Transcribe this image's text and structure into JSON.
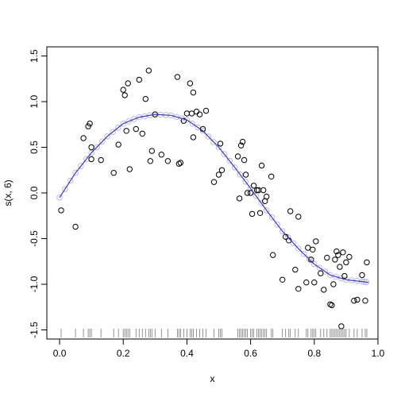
{
  "chart_data": {
    "type": "scatter",
    "title": "",
    "xlabel": "x",
    "ylabel": "s(x, 6)",
    "xlim": [
      -0.04,
      1.0
    ],
    "ylim": [
      -1.6,
      1.6
    ],
    "x_ticks": [
      {
        "value": 0.0,
        "label": "0.0"
      },
      {
        "value": 0.2,
        "label": "0.2"
      },
      {
        "value": 0.4,
        "label": "0.4"
      },
      {
        "value": 0.6,
        "label": "0.6"
      },
      {
        "value": 0.8,
        "label": "0.8"
      },
      {
        "value": 1.0,
        "label": "1.0"
      }
    ],
    "y_ticks": [
      {
        "value": -1.5,
        "label": "-1.5"
      },
      {
        "value": -1.0,
        "label": "-1.0"
      },
      {
        "value": -0.5,
        "label": "-0.5"
      },
      {
        "value": 0.0,
        "label": "0.0"
      },
      {
        "value": 0.5,
        "label": "0.5"
      },
      {
        "value": 1.0,
        "label": "1.0"
      },
      {
        "value": 1.5,
        "label": "1.5"
      }
    ],
    "grid": false,
    "legend": "none",
    "colors": {
      "points": "#000000",
      "fit_line": "#3a3aa8",
      "fit_band": "#b8b8e6",
      "rug": "#777777"
    },
    "series": [
      {
        "kind": "points",
        "x": [
          0.005,
          0.05,
          0.075,
          0.09,
          0.095,
          0.1,
          0.1,
          0.13,
          0.17,
          0.185,
          0.2,
          0.205,
          0.21,
          0.215,
          0.22,
          0.24,
          0.25,
          0.26,
          0.27,
          0.28,
          0.285,
          0.29,
          0.3,
          0.32,
          0.34,
          0.37,
          0.375,
          0.38,
          0.39,
          0.4,
          0.41,
          0.415,
          0.42,
          0.42,
          0.43,
          0.44,
          0.45,
          0.46,
          0.485,
          0.5,
          0.505,
          0.51,
          0.56,
          0.565,
          0.57,
          0.575,
          0.58,
          0.585,
          0.59,
          0.6,
          0.605,
          0.61,
          0.62,
          0.625,
          0.63,
          0.635,
          0.64,
          0.645,
          0.65,
          0.665,
          0.67,
          0.7,
          0.71,
          0.72,
          0.725,
          0.74,
          0.75,
          0.75,
          0.775,
          0.78,
          0.79,
          0.795,
          0.8,
          0.805,
          0.82,
          0.83,
          0.84,
          0.85,
          0.855,
          0.86,
          0.865,
          0.87,
          0.875,
          0.88,
          0.885,
          0.89,
          0.895,
          0.9,
          0.91,
          0.925,
          0.935,
          0.95,
          0.96,
          0.965
        ],
        "y": [
          -0.19,
          -0.37,
          0.6,
          0.73,
          0.76,
          0.5,
          0.37,
          0.36,
          0.22,
          0.53,
          1.13,
          1.07,
          0.68,
          1.2,
          0.26,
          0.7,
          1.24,
          0.65,
          1.03,
          1.34,
          0.35,
          0.46,
          0.86,
          0.42,
          0.35,
          1.27,
          0.32,
          0.33,
          0.79,
          0.87,
          1.2,
          0.87,
          0.61,
          1.1,
          0.89,
          0.86,
          0.7,
          0.9,
          0.12,
          0.2,
          0.54,
          0.25,
          0.4,
          -0.06,
          0.52,
          0.56,
          0.36,
          0.2,
          0.0,
          0.0,
          -0.23,
          0.08,
          0.03,
          0.03,
          -0.22,
          0.3,
          0.03,
          -0.09,
          -0.04,
          0.18,
          -0.68,
          -0.95,
          -0.48,
          -0.52,
          -0.2,
          -0.84,
          -1.05,
          -0.26,
          -0.98,
          -0.6,
          -0.73,
          -0.62,
          -0.98,
          -0.53,
          -0.88,
          -1.06,
          -0.71,
          -1.22,
          -1.23,
          -1.0,
          -0.73,
          -0.64,
          -0.68,
          -0.81,
          -1.46,
          -0.65,
          -0.91,
          -0.76,
          -0.7,
          -1.18,
          -1.17,
          -0.9,
          -1.18,
          -0.76
        ]
      },
      {
        "kind": "fit",
        "x": [
          0.0,
          0.05,
          0.1,
          0.15,
          0.2,
          0.25,
          0.3,
          0.35,
          0.4,
          0.45,
          0.5,
          0.55,
          0.6,
          0.65,
          0.7,
          0.75,
          0.8,
          0.85,
          0.9,
          0.95,
          0.97
        ],
        "y": [
          -0.05,
          0.22,
          0.44,
          0.62,
          0.76,
          0.83,
          0.86,
          0.85,
          0.8,
          0.68,
          0.5,
          0.28,
          0.05,
          -0.19,
          -0.42,
          -0.61,
          -0.78,
          -0.9,
          -0.95,
          -0.97,
          -0.98
        ]
      }
    ],
    "rug_x": [
      0.005,
      0.05,
      0.075,
      0.09,
      0.095,
      0.1,
      0.13,
      0.17,
      0.185,
      0.2,
      0.205,
      0.21,
      0.215,
      0.22,
      0.24,
      0.25,
      0.26,
      0.27,
      0.28,
      0.285,
      0.29,
      0.3,
      0.32,
      0.34,
      0.37,
      0.375,
      0.38,
      0.39,
      0.4,
      0.41,
      0.415,
      0.42,
      0.43,
      0.44,
      0.45,
      0.46,
      0.485,
      0.5,
      0.505,
      0.51,
      0.56,
      0.565,
      0.57,
      0.575,
      0.58,
      0.585,
      0.59,
      0.6,
      0.605,
      0.61,
      0.62,
      0.625,
      0.63,
      0.635,
      0.64,
      0.645,
      0.65,
      0.665,
      0.67,
      0.7,
      0.71,
      0.72,
      0.725,
      0.74,
      0.75,
      0.775,
      0.78,
      0.79,
      0.795,
      0.8,
      0.805,
      0.82,
      0.83,
      0.84,
      0.85,
      0.855,
      0.86,
      0.865,
      0.87,
      0.875,
      0.88,
      0.885,
      0.89,
      0.895,
      0.9,
      0.91,
      0.925,
      0.935,
      0.95,
      0.96,
      0.965
    ]
  }
}
